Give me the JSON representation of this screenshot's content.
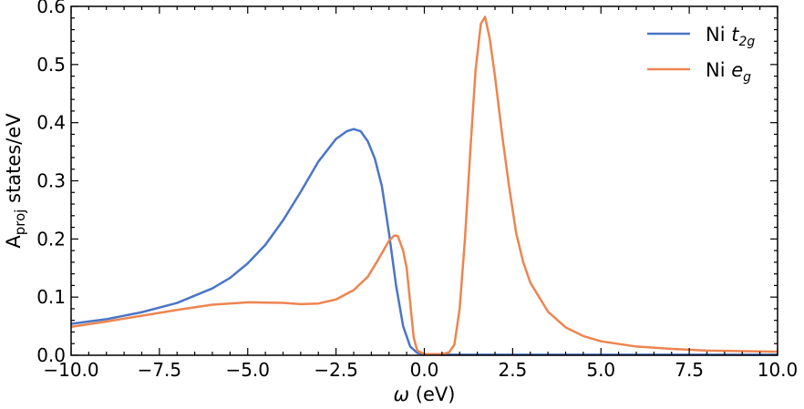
{
  "chart_data": {
    "type": "line",
    "title": "",
    "xlabel_symbol": "ω",
    "xlabel_unit": " (eV)",
    "ylabel_main": "A",
    "ylabel_sub": "proj",
    "ylabel_rest": " states/eV",
    "xlim": [
      -10,
      10
    ],
    "ylim": [
      0,
      0.6
    ],
    "xticks": [
      -10,
      -7.5,
      -5,
      -2.5,
      0,
      2.5,
      5,
      7.5,
      10
    ],
    "xtick_labels": [
      "−10.0",
      "−7.5",
      "−5.0",
      "−2.5",
      "0.0",
      "2.5",
      "5.0",
      "7.5",
      "10.0"
    ],
    "yticks": [
      0,
      0.1,
      0.2,
      0.3,
      0.4,
      0.5,
      0.6
    ],
    "ytick_labels": [
      "0.0",
      "0.1",
      "0.2",
      "0.3",
      "0.4",
      "0.5",
      "0.6"
    ],
    "grid": false,
    "legend_position": "top-right",
    "series": [
      {
        "name": "Ni t2g",
        "legend_base": "Ni ",
        "legend_var": "t",
        "legend_sub": "2g",
        "color": "#4a76c6",
        "points": [
          [
            -10,
            0.054
          ],
          [
            -9,
            0.062
          ],
          [
            -8,
            0.074
          ],
          [
            -7,
            0.09
          ],
          [
            -6,
            0.115
          ],
          [
            -5.5,
            0.133
          ],
          [
            -5,
            0.158
          ],
          [
            -4.5,
            0.19
          ],
          [
            -4,
            0.232
          ],
          [
            -3.5,
            0.281
          ],
          [
            -3,
            0.333
          ],
          [
            -2.5,
            0.372
          ],
          [
            -2.2,
            0.385
          ],
          [
            -2.0,
            0.389
          ],
          [
            -1.8,
            0.385
          ],
          [
            -1.6,
            0.368
          ],
          [
            -1.4,
            0.338
          ],
          [
            -1.2,
            0.29
          ],
          [
            -1.0,
            0.21
          ],
          [
            -0.8,
            0.12
          ],
          [
            -0.6,
            0.05
          ],
          [
            -0.4,
            0.015
          ],
          [
            -0.2,
            0.004
          ],
          [
            0,
            0.002
          ],
          [
            0.5,
            0.001
          ],
          [
            2,
            0.001
          ],
          [
            4,
            0.001
          ],
          [
            6,
            0.001
          ],
          [
            8,
            0.001
          ],
          [
            10,
            0.001
          ]
        ]
      },
      {
        "name": "Ni eg",
        "legend_base": "Ni ",
        "legend_var": "e",
        "legend_sub": "g",
        "color": "#ed8550",
        "points": [
          [
            -10,
            0.049
          ],
          [
            -9,
            0.058
          ],
          [
            -8,
            0.068
          ],
          [
            -7,
            0.078
          ],
          [
            -6,
            0.087
          ],
          [
            -5,
            0.091
          ],
          [
            -4,
            0.09
          ],
          [
            -3.5,
            0.088
          ],
          [
            -3,
            0.089
          ],
          [
            -2.5,
            0.096
          ],
          [
            -2,
            0.112
          ],
          [
            -1.6,
            0.135
          ],
          [
            -1.3,
            0.165
          ],
          [
            -1.0,
            0.197
          ],
          [
            -0.85,
            0.206
          ],
          [
            -0.75,
            0.205
          ],
          [
            -0.6,
            0.18
          ],
          [
            -0.5,
            0.15
          ],
          [
            -0.4,
            0.09
          ],
          [
            -0.3,
            0.03
          ],
          [
            -0.2,
            0.008
          ],
          [
            0,
            0.002
          ],
          [
            0.5,
            0.002
          ],
          [
            0.7,
            0.005
          ],
          [
            0.85,
            0.018
          ],
          [
            1.0,
            0.08
          ],
          [
            1.15,
            0.2
          ],
          [
            1.3,
            0.35
          ],
          [
            1.45,
            0.49
          ],
          [
            1.6,
            0.57
          ],
          [
            1.72,
            0.582
          ],
          [
            1.85,
            0.545
          ],
          [
            2.0,
            0.48
          ],
          [
            2.2,
            0.38
          ],
          [
            2.4,
            0.29
          ],
          [
            2.6,
            0.21
          ],
          [
            2.8,
            0.16
          ],
          [
            3.0,
            0.125
          ],
          [
            3.5,
            0.075
          ],
          [
            4.0,
            0.048
          ],
          [
            4.5,
            0.033
          ],
          [
            5.0,
            0.024
          ],
          [
            6.0,
            0.015
          ],
          [
            7.0,
            0.011
          ],
          [
            8.0,
            0.008
          ],
          [
            10.0,
            0.006
          ]
        ]
      }
    ]
  }
}
